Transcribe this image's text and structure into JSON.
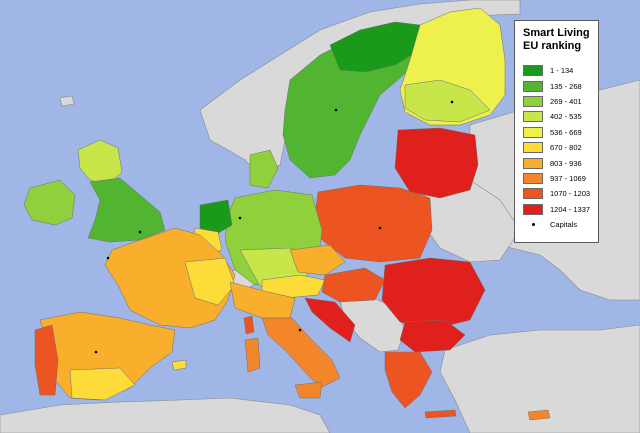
{
  "legend": {
    "title_line1": "Smart Living",
    "title_line2": "EU ranking",
    "items": [
      {
        "label": "1 - 134",
        "color": "#1a9a1a"
      },
      {
        "label": "135 - 268",
        "color": "#52b532"
      },
      {
        "label": "269 - 401",
        "color": "#8fd03c"
      },
      {
        "label": "402 - 535",
        "color": "#c6e64a"
      },
      {
        "label": "536 - 669",
        "color": "#eef04e"
      },
      {
        "label": "670 - 802",
        "color": "#fddc3a"
      },
      {
        "label": "803 - 936",
        "color": "#f9ae2c"
      },
      {
        "label": "937 - 1069",
        "color": "#f3862a"
      },
      {
        "label": "1070 - 1203",
        "color": "#ec5422"
      },
      {
        "label": "1204 - 1337",
        "color": "#e0201c"
      }
    ],
    "capitals_label": "Capitals"
  },
  "colors": {
    "sea": "#9fb6e6",
    "non_eu_land": "#d9d9d9",
    "border": "#7a7a7a"
  }
}
